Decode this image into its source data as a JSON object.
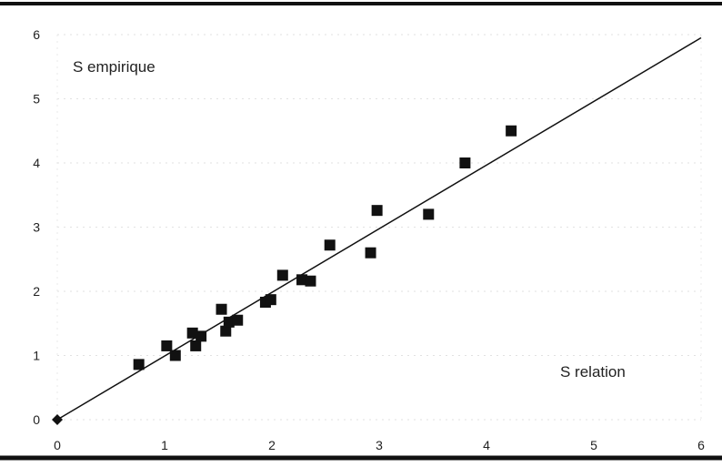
{
  "chart_data": {
    "type": "scatter",
    "title": "",
    "xlabel": "",
    "ylabel": "",
    "xlim": [
      0,
      6
    ],
    "ylim": [
      0,
      6
    ],
    "grid": false,
    "x_ticks": [
      "0",
      "1",
      "2",
      "3",
      "4",
      "5",
      "6"
    ],
    "y_ticks": [
      "0",
      "1",
      "2",
      "3",
      "4",
      "5",
      "6"
    ],
    "annotations": {
      "y_axis_label": "S empirique",
      "x_axis_label": "S relation"
    },
    "colors": {
      "points": "#111111",
      "line": "#111111",
      "axis": "#111111"
    },
    "origin_point": {
      "x": 0,
      "y": 0,
      "marker": "diamond"
    },
    "fit_line": {
      "x": [
        0,
        6
      ],
      "y": [
        0,
        5.95
      ]
    },
    "series": [
      {
        "marker": "square",
        "x": [
          0.76,
          1.02,
          1.1,
          1.26,
          1.29,
          1.34,
          1.53,
          1.57,
          1.6,
          1.68,
          1.94,
          1.99,
          2.1,
          2.28,
          2.36,
          2.54,
          2.92,
          2.98,
          3.46,
          3.8,
          4.23
        ],
        "y": [
          0.86,
          1.15,
          1.0,
          1.35,
          1.15,
          1.3,
          1.72,
          1.38,
          1.52,
          1.55,
          1.83,
          1.87,
          2.25,
          2.18,
          2.16,
          2.72,
          2.6,
          3.26,
          3.2,
          4.0,
          4.5
        ]
      }
    ]
  }
}
